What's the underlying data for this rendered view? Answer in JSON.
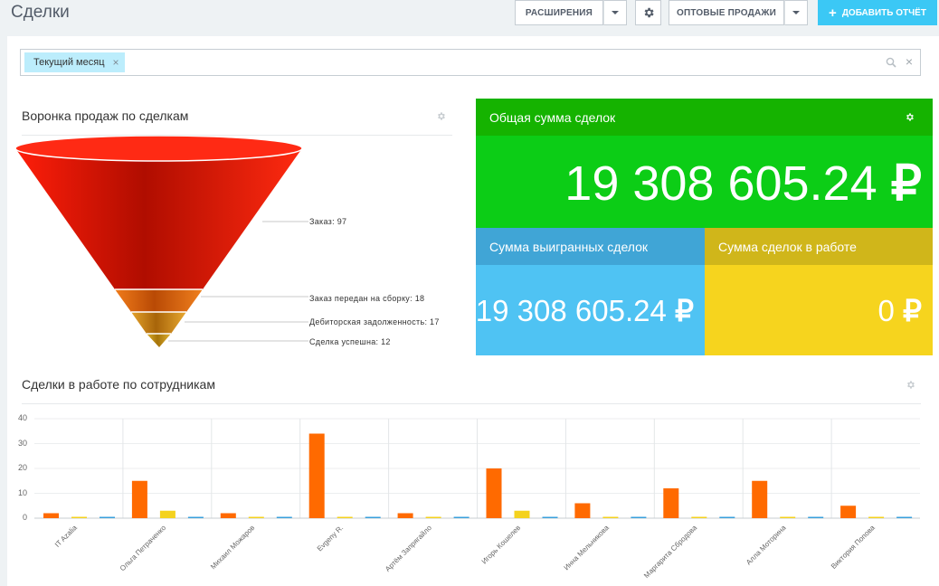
{
  "header": {
    "title": "Сделки",
    "extensions_label": "РАСШИРЕНИЯ",
    "wholesale_label": "ОПТОВЫЕ ПРОДАЖИ",
    "add_report_label": "ДОБАВИТЬ ОТЧЁТ"
  },
  "filter": {
    "chip_label": "Текущий месяц",
    "chip_close": "×",
    "clear": "×"
  },
  "funnel": {
    "title": "Воронка продаж по сделкам",
    "stages": [
      {
        "label": "Заказ: 97",
        "value": 97,
        "color": "#e31600"
      },
      {
        "label": "Заказ передан на сборку: 18",
        "value": 18,
        "color": "#e0600a"
      },
      {
        "label": "Дебиторская задолженность: 17",
        "value": 17,
        "color": "#c97e0a"
      },
      {
        "label": "Сделка успешна: 12",
        "value": 12,
        "color": "#c3900a"
      }
    ]
  },
  "totals": {
    "total_title": "Общая сумма сделок",
    "total_value": "19 308 605.24",
    "won_title": "Сумма выигранных сделок",
    "won_value": "19 308 605.24",
    "progress_title": "Сумма сделок в работе",
    "progress_value": "0",
    "currency": "₽",
    "colors": {
      "total_head": "#15b300",
      "total_body": "#0ccd16",
      "won_head": "#40a5d6",
      "won_body": "#4fc3f3",
      "progress_head": "#d0b61a",
      "progress_body": "#f6d41e"
    }
  },
  "bar_widget": {
    "title": "Сделки в работе по сотрудникам"
  },
  "chart_data": {
    "type": "bar",
    "categories": [
      "IT Azalia",
      "Ольга Петраченко",
      "Михаил Можаров",
      "Evgeny R.",
      "Артём Запрягайло",
      "Игорь Кошелев",
      "Инна Мельникова",
      "Маргарита Сбродова",
      "Алла Моторина",
      "Виктория Попова"
    ],
    "series": [
      {
        "values": [
          2,
          15,
          2,
          34,
          2,
          20,
          6,
          12,
          15,
          5
        ],
        "color": "#ff6a00"
      },
      {
        "values": [
          0,
          3,
          0,
          0,
          0,
          3,
          0,
          0,
          0,
          0
        ],
        "color": "#f4d21e"
      },
      {
        "values": [
          0,
          0,
          0,
          0,
          0,
          0,
          0,
          0,
          0,
          0
        ],
        "color": "#3aa0dc"
      }
    ],
    "yticks": [
      0,
      10,
      20,
      30,
      40
    ],
    "ylim": [
      0,
      40
    ],
    "grid": true
  }
}
